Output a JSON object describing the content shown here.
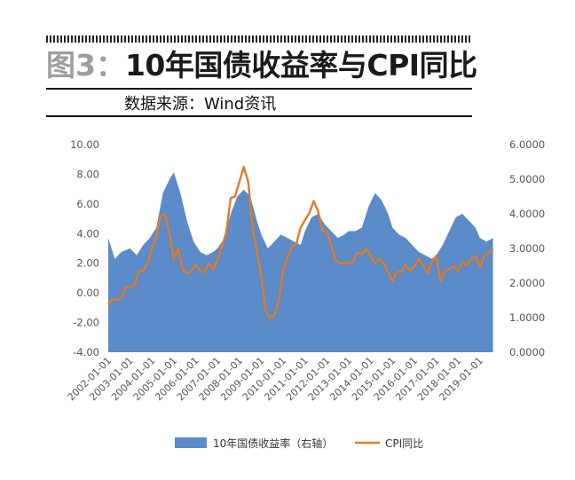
{
  "header": {
    "figure_number": "图3：",
    "title": "10年国债收益率与CPI同比",
    "source": "数据来源：Wind资讯"
  },
  "colors": {
    "bond_area": "#5b8bc8",
    "cpi_line": "#e07b2c"
  },
  "chart_data": {
    "type": "area",
    "title": "10年国债收益率与CPI同比",
    "left_axis": {
      "ylim": [
        -4,
        10
      ],
      "ticks": [
        "10.00",
        "8.00",
        "6.00",
        "4.00",
        "2.00",
        "0.00",
        "-2.00",
        "-4.00"
      ]
    },
    "right_axis": {
      "ylim": [
        0,
        6
      ],
      "ticks": [
        "6.0000",
        "5.0000",
        "4.0000",
        "3.0000",
        "2.0000",
        "1.0000",
        "0.0000"
      ]
    },
    "x_tick_labels": [
      "2002-01-01",
      "2003-01-01",
      "2004-01-01",
      "2005-01-01",
      "2006-01-01",
      "2007-01-01",
      "2008-01-01",
      "2009-01-01",
      "2010-01-01",
      "2011-01-01",
      "2012-01-01",
      "2013-01-01",
      "2014-01-01",
      "2015-01-01",
      "2016-01-01",
      "2017-01-01",
      "2018-01-01",
      "2019-01-01"
    ],
    "grid": false,
    "legend_position": "bottom",
    "series": [
      {
        "name": "10年国债收益率（右轴）",
        "axis": "right",
        "kind": "area",
        "x": [
          2002.0,
          2002.3,
          2002.6,
          2003.0,
          2003.3,
          2003.6,
          2003.9,
          2004.2,
          2004.5,
          2004.8,
          2005.0,
          2005.3,
          2005.6,
          2005.9,
          2006.2,
          2006.5,
          2006.8,
          2007.0,
          2007.3,
          2007.6,
          2007.9,
          2008.2,
          2008.5,
          2008.8,
          2009.0,
          2009.3,
          2009.6,
          2009.9,
          2010.2,
          2010.5,
          2010.8,
          2011.0,
          2011.3,
          2011.6,
          2011.9,
          2012.2,
          2012.5,
          2012.8,
          2013.0,
          2013.3,
          2013.6,
          2013.9,
          2014.2,
          2014.5,
          2014.8,
          2015.0,
          2015.3,
          2015.6,
          2015.9,
          2016.2,
          2016.5,
          2016.8,
          2017.0,
          2017.3,
          2017.6,
          2017.9,
          2018.2,
          2018.5,
          2018.8,
          2019.0,
          2019.3,
          2019.6
        ],
        "values": [
          3.3,
          2.7,
          2.9,
          3.0,
          2.8,
          3.1,
          3.3,
          3.6,
          4.6,
          5.0,
          5.2,
          4.6,
          3.8,
          3.2,
          2.9,
          2.8,
          2.9,
          3.0,
          3.3,
          4.0,
          4.5,
          4.7,
          4.5,
          3.8,
          3.4,
          3.0,
          3.2,
          3.4,
          3.3,
          3.2,
          3.1,
          3.5,
          3.9,
          4.0,
          3.7,
          3.5,
          3.3,
          3.4,
          3.5,
          3.5,
          3.6,
          4.2,
          4.6,
          4.4,
          4.0,
          3.6,
          3.4,
          3.3,
          3.1,
          2.9,
          2.8,
          2.7,
          2.8,
          3.1,
          3.5,
          3.9,
          4.0,
          3.8,
          3.6,
          3.3,
          3.2,
          3.3
        ]
      },
      {
        "name": "CPI同比",
        "axis": "left",
        "kind": "line",
        "x": [
          2002.0,
          2002.2,
          2002.4,
          2002.6,
          2002.8,
          2003.0,
          2003.2,
          2003.4,
          2003.6,
          2003.8,
          2004.0,
          2004.2,
          2004.4,
          2004.6,
          2004.8,
          2005.0,
          2005.2,
          2005.4,
          2005.6,
          2005.8,
          2006.0,
          2006.2,
          2006.4,
          2006.6,
          2006.8,
          2007.0,
          2007.2,
          2007.4,
          2007.6,
          2007.8,
          2008.0,
          2008.2,
          2008.4,
          2008.6,
          2008.8,
          2009.0,
          2009.2,
          2009.4,
          2009.6,
          2009.8,
          2010.0,
          2010.2,
          2010.4,
          2010.6,
          2010.8,
          2011.0,
          2011.2,
          2011.4,
          2011.6,
          2011.8,
          2012.0,
          2012.2,
          2012.4,
          2012.6,
          2012.8,
          2013.0,
          2013.2,
          2013.4,
          2013.6,
          2013.8,
          2014.0,
          2014.2,
          2014.4,
          2014.6,
          2014.8,
          2015.0,
          2015.2,
          2015.4,
          2015.6,
          2015.8,
          2016.0,
          2016.2,
          2016.4,
          2016.6,
          2016.8,
          2017.0,
          2017.2,
          2017.4,
          2017.6,
          2017.8,
          2018.0,
          2018.2,
          2018.4,
          2018.6,
          2018.8,
          2019.0,
          2019.2,
          2019.4,
          2019.6
        ],
        "values": [
          -0.8,
          -0.4,
          -0.5,
          -0.3,
          0.4,
          0.4,
          0.5,
          1.5,
          1.5,
          2.0,
          3.0,
          3.8,
          5.2,
          5.3,
          4.0,
          2.3,
          3.0,
          1.6,
          1.3,
          1.5,
          1.9,
          1.5,
          1.4,
          2.0,
          1.6,
          2.2,
          3.1,
          4.1,
          6.4,
          6.5,
          7.5,
          8.5,
          7.5,
          4.5,
          2.8,
          1.1,
          -1.2,
          -1.7,
          -1.5,
          -0.5,
          1.5,
          2.4,
          3.1,
          3.3,
          4.4,
          4.9,
          5.4,
          6.2,
          5.5,
          4.2,
          4.1,
          3.2,
          2.2,
          2.0,
          2.0,
          2.0,
          2.1,
          2.7,
          2.6,
          3.0,
          2.5,
          2.0,
          2.3,
          2.0,
          1.4,
          0.8,
          1.4,
          1.4,
          1.9,
          1.5,
          1.8,
          2.3,
          1.9,
          1.3,
          2.1,
          2.5,
          0.8,
          1.5,
          1.6,
          1.8,
          1.5,
          2.1,
          1.9,
          2.3,
          2.5,
          1.7,
          2.5,
          2.7,
          3.0
        ]
      }
    ]
  }
}
